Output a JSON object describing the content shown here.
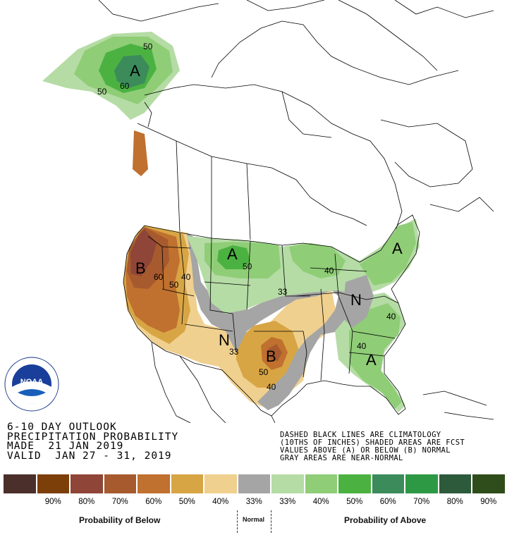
{
  "title": {
    "line1": "6-10 DAY OUTLOOK",
    "line2": "PRECIPITATION PROBABILITY",
    "line3": "MADE  21 JAN 2019",
    "line4": "VALID  JAN 27 - 31, 2019"
  },
  "notes": {
    "line1": "DASHED BLACK LINES ARE CLIMATOLOGY",
    "line2": "(10THS OF INCHES) SHADED AREAS ARE FCST",
    "line3": "VALUES ABOVE (A) OR BELOW (B) NORMAL",
    "line4": "GRAY AREAS ARE NEAR-NORMAL"
  },
  "logo": {
    "text": "NOAA",
    "ring_text": "NATIONAL OCEANIC AND ATMOSPHERIC ADMINISTRATION · U.S. DEPARTMENT OF COMMERCE"
  },
  "legend": {
    "below_title": "Probability of Below",
    "normal_title": "Normal",
    "above_title": "Probability of Above",
    "colors": [
      "#4b2f2a",
      "#7d3f09",
      "#8f4537",
      "#a65a2e",
      "#c0702f",
      "#d8a545",
      "#f0d08f",
      "#a5a5a5",
      "#a5a5a5",
      "#b5dca5",
      "#8fcd77",
      "#4bb241",
      "#3b8b5b",
      "#2e9944",
      "#2d5a3b",
      "#2f4d1a"
    ],
    "labels": [
      "90%",
      "80%",
      "70%",
      "60%",
      "50%",
      "40%",
      "33%",
      "33%",
      "40%",
      "50%",
      "60%",
      "70%",
      "80%",
      "90%"
    ]
  },
  "map_labels": {
    "alaska_A": "A",
    "alaska_60": "60",
    "alaska_50a": "50",
    "alaska_50b": "50",
    "west_B": "B",
    "west_60": "60",
    "west_50": "50",
    "west_40": "40",
    "plains_A": "A",
    "plains_50": "50",
    "texas_B": "B",
    "texas_50": "50",
    "texas_40": "40",
    "sw_N": "N",
    "sw_33": "33",
    "mw_33": "33",
    "lakes_40": "40",
    "east_N": "N",
    "ne_A": "A",
    "se_40a": "40",
    "se_40b": "40",
    "se_A": "A"
  }
}
